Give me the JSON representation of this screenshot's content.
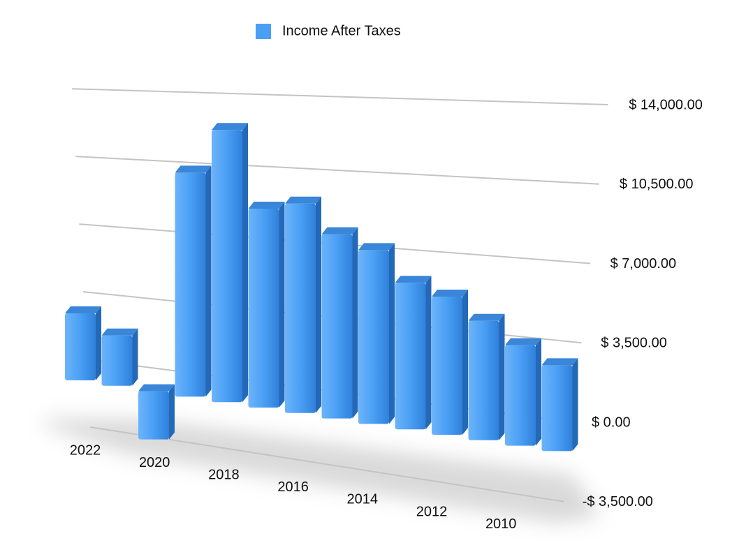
{
  "chart_data": {
    "type": "bar3d",
    "categories": [
      "2022",
      null,
      "2020",
      null,
      "2018",
      null,
      "2016",
      null,
      "2014",
      null,
      "2012",
      null,
      "2010",
      null
    ],
    "series": [
      {
        "name": "Income After Taxes",
        "color": "#4a9ff5",
        "values": [
          3200,
          2400,
          -2300,
          10700,
          13000,
          9500,
          10000,
          8800,
          8300,
          7000,
          6600,
          5700,
          4800,
          4100
        ]
      }
    ],
    "ylim": [
      -3500,
      14000
    ],
    "yticks": [
      {
        "value": -3500,
        "label": "-$ 3,500.00"
      },
      {
        "value": 0,
        "label": "$ 0.00"
      },
      {
        "value": 3500,
        "label": "$ 3,500.00"
      },
      {
        "value": 7000,
        "label": "$ 7,000.00"
      },
      {
        "value": 10500,
        "label": "$ 10,500.00"
      },
      {
        "value": 14000,
        "label": "$ 14,000.00"
      }
    ],
    "grid": true,
    "legend": "top"
  }
}
